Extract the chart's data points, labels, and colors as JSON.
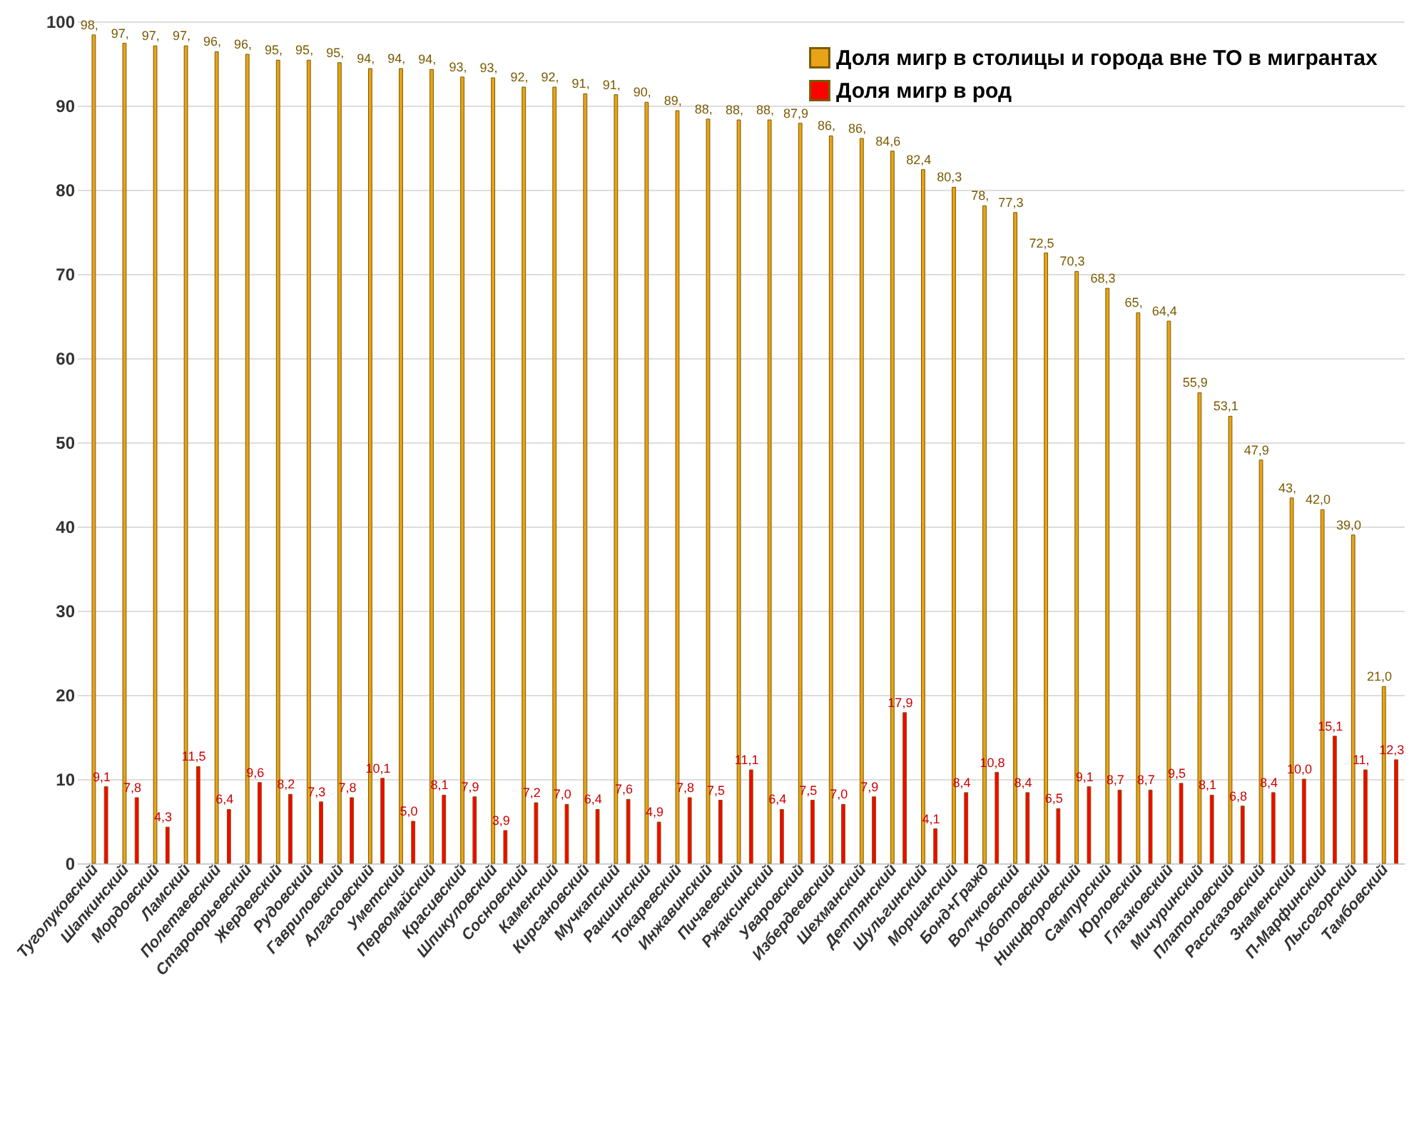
{
  "chart_data": {
    "type": "bar",
    "categories": [
      "Туголуковский",
      "Шапкинский",
      "Мордовский",
      "Ламский",
      "Полетаевский",
      "Староюрьевский",
      "Жердевский",
      "Рудовский",
      "Гавриловский",
      "Алгасовский",
      "Уметский",
      "Первомайский",
      "Красивский",
      "Шпикуловский",
      "Сосновский",
      "Каменский",
      "Кирсановский",
      "Мучкапский",
      "Ракшинский",
      "Токаревский",
      "Инжавинский",
      "Пичаевский",
      "Ржаксинский",
      "Уваровский",
      "Избердеевский",
      "Шехманский",
      "Деттянский",
      "Шульгинский",
      "Моршанский",
      "Бонд+Гражд",
      "Волчковский",
      "Хоботовский",
      "Никифоровский",
      "Сампурский",
      "Юрловский",
      "Глазковский",
      "Мичуринский",
      "Платоновский",
      "Рассказовский",
      "Знаменский",
      "П-Марфинский",
      "Лысогорский",
      "Тамбовский"
    ],
    "series": [
      {
        "name": "Доля мигр в столицы и города вне ТО в мигрантах",
        "color": "#e8a317",
        "values": [
          98.4,
          97.4,
          97.1,
          97.1,
          96.4,
          96.1,
          95.4,
          95.4,
          95.1,
          94.4,
          94.4,
          94.3,
          93.4,
          93.3,
          92.2,
          92.2,
          91.4,
          91.3,
          90.4,
          89.4,
          88.4,
          88.3,
          88.3,
          87.9,
          86.4,
          86.1,
          84.6,
          82.4,
          80.3,
          78.1,
          77.3,
          72.5,
          70.3,
          68.3,
          65.4,
          64.4,
          55.9,
          53.1,
          47.9,
          43.4,
          42.0,
          39.0,
          21.0
        ],
        "value_labels": [
          "98,",
          "97,",
          "97,",
          "97,",
          "96,",
          "96,",
          "95,",
          "95,",
          "95,",
          "94,",
          "94,",
          "94,",
          "93,",
          "93,",
          "92,",
          "92,",
          "91,",
          "91,",
          "90,",
          "89,",
          "88,",
          "88,",
          "88,",
          "87,9",
          "86,",
          "86,",
          "84,6",
          "82,4",
          "80,3",
          "78,",
          "77,3",
          "72,5",
          "70,3",
          "68,3",
          "65,",
          "64,4",
          "55,9",
          "53,1",
          "47,9",
          "43,",
          "42,0",
          "39,0",
          "21,0"
        ]
      },
      {
        "name": "Доля мигр в род",
        "color": "#ff0000",
        "values": [
          9.1,
          7.8,
          4.3,
          11.5,
          6.4,
          9.6,
          8.2,
          7.3,
          7.8,
          10.1,
          5.0,
          8.1,
          7.9,
          3.9,
          7.2,
          7.0,
          6.4,
          7.6,
          4.9,
          7.8,
          7.5,
          11.1,
          6.4,
          7.5,
          7.0,
          7.9,
          17.9,
          4.1,
          8.4,
          10.8,
          8.4,
          6.5,
          9.1,
          8.7,
          8.7,
          9.5,
          8.1,
          6.8,
          8.4,
          10.0,
          15.1,
          11.1,
          12.3
        ],
        "value_labels": [
          "9,1",
          "7,8",
          "4,3",
          "11,5",
          "6,4",
          "9,6",
          "8,2",
          "7,3",
          "7,8",
          "10,1",
          "5,0",
          "8,1",
          "7,9",
          "3,9",
          "7,2",
          "7,0",
          "6,4",
          "7,6",
          "4,9",
          "7,8",
          "7,5",
          "11,1",
          "6,4",
          "7,5",
          "7,0",
          "7,9",
          "17,9",
          "4,1",
          "8,4",
          "10,8",
          "8,4",
          "6,5",
          "9,1",
          "8,7",
          "8,7",
          "9,5",
          "8,1",
          "6,8",
          "8,4",
          "10,0",
          "15,1",
          "11,",
          "12,3"
        ]
      }
    ],
    "ylim": [
      0,
      100
    ],
    "yticks": [
      0,
      10,
      20,
      30,
      40,
      50,
      60,
      70,
      80,
      90,
      100
    ],
    "grid": true,
    "legend": "top right"
  }
}
